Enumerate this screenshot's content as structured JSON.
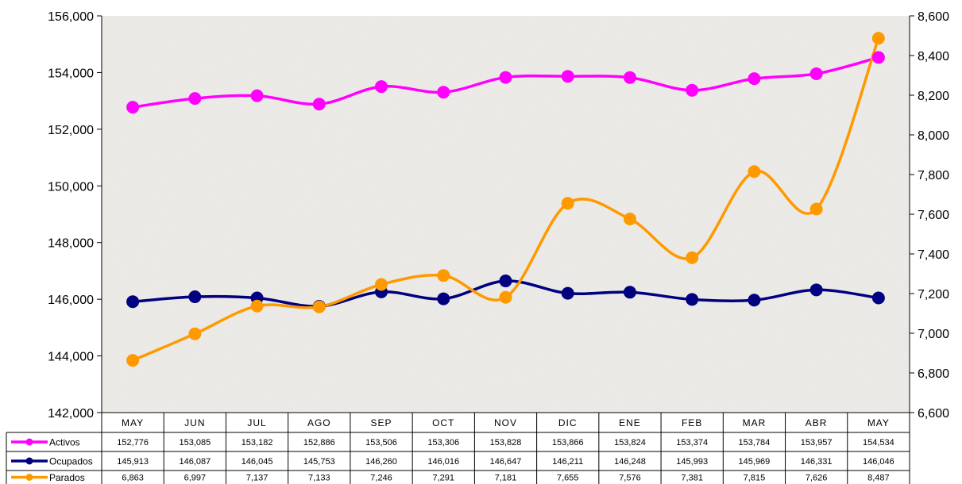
{
  "chart_data": {
    "type": "line",
    "title": "",
    "categories": [
      "MAY",
      "JUN",
      "JUL",
      "AGO",
      "SEP",
      "OCT",
      "NOV",
      "DIC",
      "ENE",
      "FEB",
      "MAR",
      "ABR",
      "MAY"
    ],
    "y_left": {
      "min": 142000,
      "max": 156000,
      "ticks": [
        "142,000",
        "144,000",
        "146,000",
        "148,000",
        "150,000",
        "152,000",
        "154,000",
        "156,000"
      ]
    },
    "y_right": {
      "min": 6600,
      "max": 8600,
      "ticks": [
        "6,600",
        "6,800",
        "7,000",
        "7,200",
        "7,400",
        "7,600",
        "7,800",
        "8,000",
        "8,200",
        "8,400",
        "8,600"
      ]
    },
    "series": [
      {
        "name": "Activos",
        "axis": "left",
        "color": "#ff00ff",
        "values": [
          152776,
          153085,
          153182,
          152886,
          153506,
          153306,
          153828,
          153866,
          153824,
          153374,
          153784,
          153957,
          154534
        ],
        "labels": [
          "152,776",
          "153,085",
          "153,182",
          "152,886",
          "153,506",
          "153,306",
          "153,828",
          "153,866",
          "153,824",
          "153,374",
          "153,784",
          "153,957",
          "154,534"
        ]
      },
      {
        "name": "Ocupados",
        "axis": "left",
        "color": "#000080",
        "values": [
          145913,
          146087,
          146045,
          145753,
          146260,
          146016,
          146647,
          146211,
          146248,
          145993,
          145969,
          146331,
          146046
        ],
        "labels": [
          "145,913",
          "146,087",
          "146,045",
          "145,753",
          "146,260",
          "146,016",
          "146,647",
          "146,211",
          "146,248",
          "145,993",
          "145,969",
          "146,331",
          "146,046"
        ]
      },
      {
        "name": "Parados",
        "axis": "right",
        "color": "#ff9900",
        "values": [
          6863,
          6997,
          7137,
          7133,
          7246,
          7291,
          7181,
          7655,
          7576,
          7381,
          7815,
          7626,
          8487
        ],
        "labels": [
          "6,863",
          "6,997",
          "7,137",
          "7,133",
          "7,246",
          "7,291",
          "7,181",
          "7,655",
          "7,576",
          "7,381",
          "7,815",
          "7,626",
          "8,487"
        ]
      }
    ]
  }
}
